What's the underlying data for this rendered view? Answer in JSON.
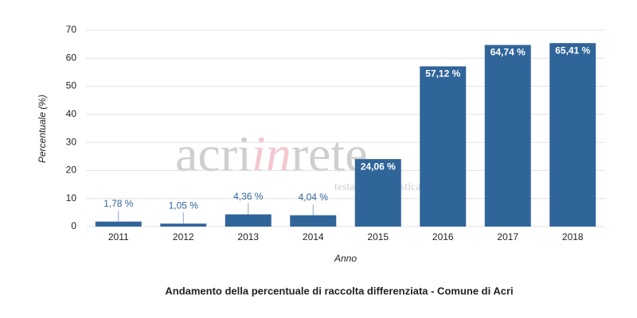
{
  "chart_data": {
    "type": "bar",
    "title": "Andamento della percentuale di raccolta differenziata - Comune di Acri",
    "x_label": "Anno",
    "y_label": "Percentuale (%)",
    "categories": [
      "2011",
      "2012",
      "2013",
      "2014",
      "2015",
      "2016",
      "2017",
      "2018"
    ],
    "values": [
      1.78,
      1.05,
      4.36,
      4.04,
      24.06,
      57.12,
      64.74,
      65.41
    ],
    "value_labels": [
      "1,78 %",
      "1,05 %",
      "4,36 %",
      "4,04 %",
      "24,06 %",
      "57,12 %",
      "64,74 %",
      "65,41 %"
    ],
    "color": "#30659a",
    "ylim": [
      0,
      70
    ],
    "yticks": [
      0,
      10,
      20,
      30,
      40,
      50,
      60,
      70
    ],
    "grid": true,
    "watermark": {
      "parts": [
        "acri",
        "in",
        "rete"
      ],
      "subtitle": "testata giornalistica locale"
    }
  }
}
